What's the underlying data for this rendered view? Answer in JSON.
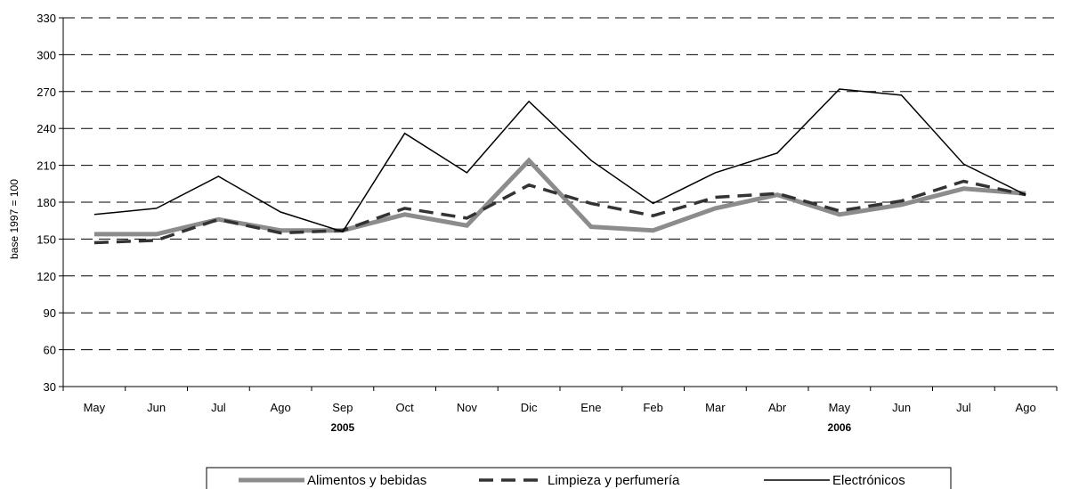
{
  "chart_data": {
    "type": "line",
    "title": "",
    "xlabel": "",
    "ylabel": "base 1997 = 100",
    "ylim": [
      30,
      330
    ],
    "yticks": [
      30,
      60,
      90,
      120,
      150,
      180,
      210,
      240,
      270,
      300,
      330
    ],
    "grid": "horizontal-dashed",
    "categories": [
      "May",
      "Jun",
      "Jul",
      "Ago",
      "Sep",
      "Oct",
      "Nov",
      "Dic",
      "Ene",
      "Feb",
      "Mar",
      "Abr",
      "May",
      "Jun",
      "Jul",
      "Ago"
    ],
    "year_labels": [
      {
        "label": "2005",
        "center_category": 4
      },
      {
        "label": "2006",
        "center_category": 12
      }
    ],
    "legend_position": "bottom",
    "series": [
      {
        "name": "Alimentos y bebidas",
        "style": "thick-solid",
        "color": "#8c8c8c",
        "values": [
          154,
          154,
          166,
          157,
          157,
          170,
          161,
          214,
          160,
          157,
          175,
          186,
          170,
          178,
          191,
          187
        ]
      },
      {
        "name": "Limpieza y perfumería",
        "style": "dashed",
        "color": "#333333",
        "values": [
          147,
          149,
          166,
          155,
          157,
          175,
          167,
          194,
          179,
          169,
          184,
          187,
          173,
          181,
          197,
          186
        ]
      },
      {
        "name": "Electrónicos",
        "style": "thin-solid",
        "color": "#000000",
        "values": [
          170,
          175,
          201,
          172,
          156,
          236,
          204,
          262,
          214,
          179,
          204,
          220,
          272,
          267,
          211,
          186
        ]
      }
    ]
  }
}
